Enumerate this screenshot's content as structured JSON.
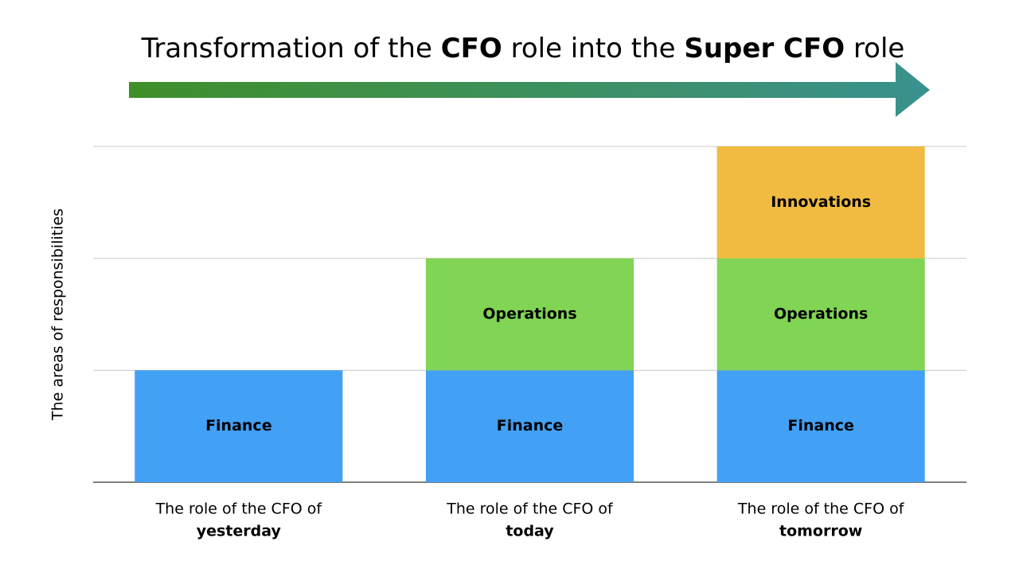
{
  "chart_data": {
    "type": "stacked-bar",
    "title": [
      {
        "text": "Transformation of the ",
        "bold": false
      },
      {
        "text": "CFO",
        "bold": true
      },
      {
        "text": " role into the ",
        "bold": false
      },
      {
        "text": "Super CFO",
        "bold": true
      },
      {
        "text": " role",
        "bold": false
      }
    ],
    "y_label": "The areas of responsibilities",
    "categories": [
      [
        "The role of the CFO of",
        "yesterday"
      ],
      [
        "The role of the CFO of",
        "today"
      ],
      [
        "The role of the CFO of",
        "tomorrow"
      ]
    ],
    "series": [
      {
        "name": "Finance",
        "color": "#42a0f5",
        "values": [
          1,
          1,
          1
        ]
      },
      {
        "name": "Operations",
        "color": "#82d454",
        "values": [
          null,
          1,
          1
        ]
      },
      {
        "name": "Innovations",
        "color": "#f0bb40",
        "values": [
          null,
          null,
          1
        ]
      }
    ],
    "ylim": [
      0,
      3
    ],
    "gridlines": [
      0,
      1,
      2,
      3
    ],
    "arrow_colors": [
      "#3f8f2a",
      "#3a918f"
    ]
  }
}
